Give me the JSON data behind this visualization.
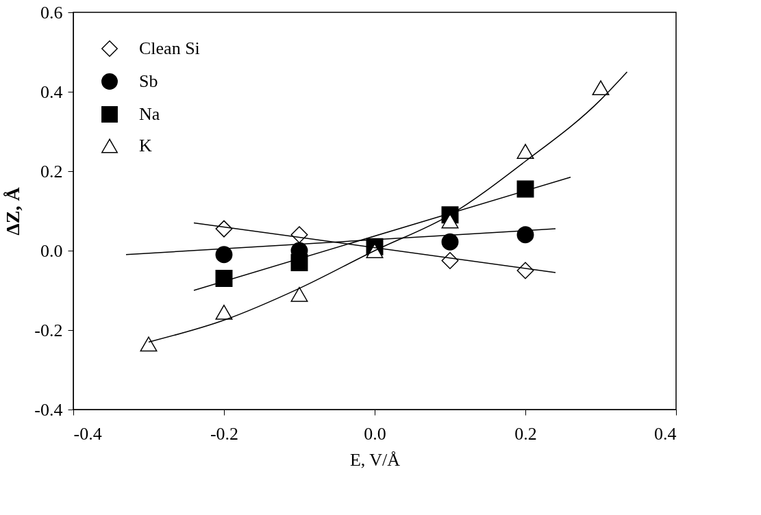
{
  "chart_data": {
    "type": "scatter",
    "xlabel": "E, V/Å",
    "ylabel": "ΔZ, Å",
    "xlim": [
      -0.4,
      0.4
    ],
    "ylim": [
      -0.4,
      0.6
    ],
    "xticks": [
      {
        "value": -0.4,
        "label": "-0.4"
      },
      {
        "value": -0.2,
        "label": "-0.2"
      },
      {
        "value": 0,
        "label": "0.0"
      },
      {
        "value": 0.2,
        "label": "0.2"
      },
      {
        "value": 0.4,
        "label": "0.4"
      }
    ],
    "yticks": [
      {
        "value": -0.4,
        "label": "-0.4"
      },
      {
        "value": -0.2,
        "label": "-0.2"
      },
      {
        "value": 0,
        "label": "0.0"
      },
      {
        "value": 0.2,
        "label": "0.2"
      },
      {
        "value": 0.4,
        "label": "0.4"
      },
      {
        "value": 0.6,
        "label": "0.6"
      }
    ],
    "grid": false,
    "legend": "top left",
    "series": [
      {
        "name": "Clean Si",
        "color": "#000000",
        "marker": "diamond",
        "x": [
          -0.2,
          -0.1,
          0.0,
          0.1,
          0.2
        ],
        "values": [
          0.055,
          0.04,
          null,
          -0.025,
          -0.05
        ]
      },
      {
        "name": "Sb",
        "color": "#000000",
        "marker": "circle",
        "x": [
          -0.2,
          -0.1,
          0.0,
          0.1,
          0.2
        ],
        "values": [
          -0.01,
          0.0,
          null,
          0.022,
          0.04
        ]
      },
      {
        "name": "Na",
        "color": "#000000",
        "marker": "square",
        "x": [
          -0.2,
          -0.1,
          0.0,
          0.1,
          0.2
        ],
        "values": [
          -0.07,
          -0.03,
          0.01,
          0.09,
          0.155
        ]
      },
      {
        "name": "K",
        "color": "#000000",
        "marker": "triangle",
        "x": [
          -0.3,
          -0.2,
          -0.1,
          0.0,
          0.1,
          0.2,
          0.3
        ],
        "values": [
          -0.235,
          -0.155,
          -0.11,
          0.0,
          0.075,
          0.25,
          0.41
        ]
      },
      {
        "type": "line",
        "color": "#000000",
        "x": [
          -0.24,
          0.24
        ],
        "values": [
          0.07,
          -0.055
        ]
      },
      {
        "type": "line",
        "color": "#000000",
        "x": [
          -0.33,
          0.24
        ],
        "values": [
          -0.01,
          0.055
        ]
      },
      {
        "type": "line",
        "color": "#000000",
        "x": [
          -0.24,
          0.26
        ],
        "values": [
          -0.1,
          0.185
        ]
      },
      {
        "type": "line",
        "color": "#000000",
        "x": [
          -0.3,
          -0.2,
          -0.1,
          0.0,
          0.1,
          0.2,
          0.3,
          0.335
        ],
        "values": [
          -0.23,
          -0.175,
          -0.095,
          0.0,
          0.09,
          0.225,
          0.38,
          0.45
        ]
      }
    ]
  }
}
